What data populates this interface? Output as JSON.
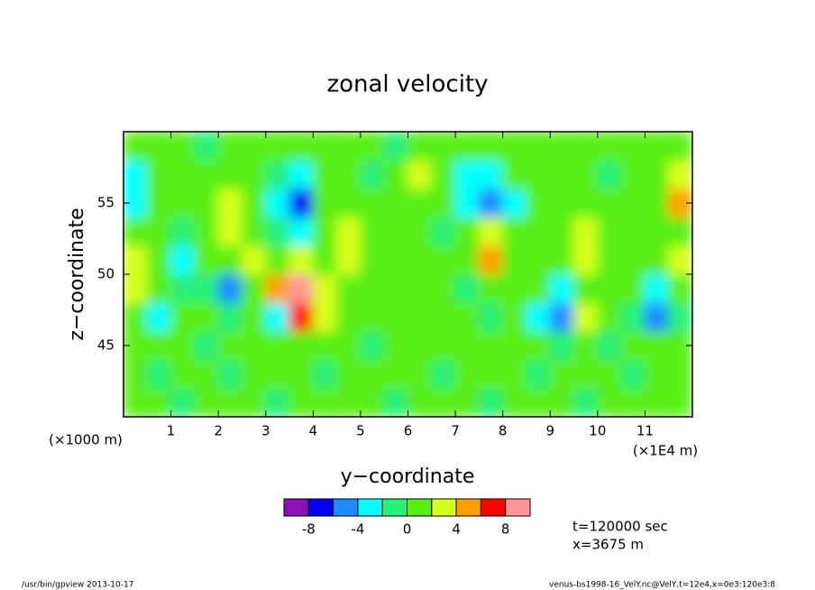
{
  "chart_data": {
    "type": "contour",
    "title": "zonal velocity",
    "x_label": "y−coordinate",
    "y_label": "z−coordinate",
    "x_offset_label": "(×1000 m)",
    "x_unit_label": "(×1E4 m)",
    "xlim": [
      0,
      12
    ],
    "xticks": [
      1,
      2,
      3,
      4,
      5,
      6,
      7,
      8,
      9,
      10,
      11
    ],
    "ylim": [
      40,
      60
    ],
    "yticks": [
      45,
      50,
      55
    ],
    "x": [
      0.25,
      0.75,
      1.25,
      1.75,
      2.25,
      2.75,
      3.25,
      3.75,
      4.25,
      4.75,
      5.25,
      5.75,
      6.25,
      6.75,
      7.25,
      7.75,
      8.25,
      8.75,
      9.25,
      9.75,
      10.25,
      10.75,
      11.25,
      11.75
    ],
    "y": [
      41,
      43,
      45,
      47,
      49,
      51,
      53,
      55,
      57,
      59
    ],
    "values": [
      [
        1,
        1,
        -1,
        1,
        1,
        1,
        -1,
        1,
        1,
        1,
        1,
        -1,
        1,
        1,
        1,
        -1,
        1,
        1,
        1,
        -1,
        1,
        1,
        1,
        1
      ],
      [
        1,
        -1,
        1,
        1,
        -1,
        1,
        1,
        1,
        -1,
        1,
        1,
        1,
        1,
        -1,
        1,
        1,
        1,
        -1,
        1,
        1,
        1,
        -1,
        1,
        1
      ],
      [
        1,
        1,
        1,
        -1,
        1,
        1,
        1,
        1,
        1,
        1,
        -1,
        1,
        1,
        1,
        1,
        1,
        1,
        1,
        -1,
        1,
        -1,
        1,
        1,
        1
      ],
      [
        1,
        -3,
        1,
        1,
        -1,
        1,
        -3,
        7,
        3,
        1,
        1,
        1,
        1,
        1,
        1,
        -1,
        1,
        -3,
        -5,
        3,
        1,
        -1,
        -5,
        -1
      ],
      [
        3,
        1,
        -1,
        -1,
        -5,
        1,
        5,
        9,
        3,
        1,
        1,
        1,
        1,
        1,
        -1,
        1,
        1,
        1,
        -3,
        1,
        1,
        1,
        -3,
        1
      ],
      [
        3,
        1,
        -3,
        1,
        1,
        3,
        1,
        3,
        1,
        3,
        1,
        1,
        1,
        1,
        1,
        5,
        1,
        1,
        1,
        3,
        1,
        1,
        1,
        3
      ],
      [
        1,
        1,
        -1,
        1,
        3,
        1,
        -1,
        -3,
        1,
        3,
        1,
        1,
        1,
        -1,
        1,
        3,
        1,
        1,
        1,
        3,
        1,
        1,
        1,
        1
      ],
      [
        -3,
        1,
        1,
        1,
        3,
        1,
        -3,
        -7,
        1,
        1,
        1,
        1,
        1,
        1,
        -3,
        -5,
        -3,
        1,
        1,
        1,
        1,
        1,
        1,
        5
      ],
      [
        -3,
        1,
        1,
        1,
        1,
        1,
        -1,
        -3,
        1,
        1,
        -1,
        1,
        3,
        1,
        -3,
        -3,
        1,
        1,
        1,
        1,
        -1,
        1,
        1,
        3
      ],
      [
        1,
        1,
        1,
        -1,
        1,
        1,
        1,
        1,
        1,
        1,
        1,
        -1,
        1,
        1,
        1,
        1,
        1,
        1,
        1,
        1,
        1,
        1,
        1,
        1
      ]
    ],
    "levels": [
      -10,
      -8,
      -6,
      -4,
      -2,
      0,
      2,
      4,
      6,
      8,
      10
    ],
    "colors": [
      "#8c0fb4",
      "#0000f5",
      "#1e8cff",
      "#00ffff",
      "#28f07a",
      "#5aef14",
      "#d7ff1e",
      "#ffa000",
      "#ff0000",
      "#ff9696"
    ],
    "colorbar_ticks": [
      -8,
      -4,
      0,
      4,
      8
    ],
    "annotations": [
      "t=120000 sec",
      "x=3675 m"
    ],
    "footer_left": "/usr/bin/gpview   2013-10-17",
    "footer_right": "venus-bs1998-16_VelY.nc@VelY,t=12e4,x=0e3:120e3:8"
  }
}
